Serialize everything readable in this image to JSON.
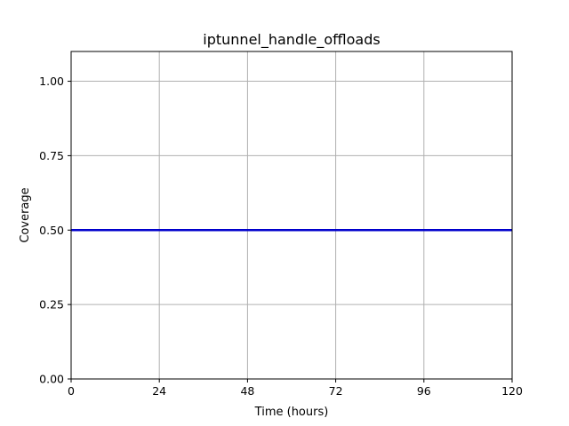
{
  "chart_data": {
    "type": "line",
    "title": "iptunnel_handle_offloads",
    "xlabel": "Time (hours)",
    "ylabel": "Coverage",
    "xlim": [
      0,
      120
    ],
    "ylim": [
      0,
      1.1
    ],
    "xticks": [
      0,
      24,
      48,
      72,
      96,
      120
    ],
    "xtick_labels": [
      "0",
      "24",
      "48",
      "72",
      "96",
      "120"
    ],
    "yticks": [
      0,
      0.25,
      0.5,
      0.75,
      1.0
    ],
    "ytick_labels": [
      "0.00",
      "0.25",
      "0.50",
      "0.75",
      "1.00"
    ],
    "grid": true,
    "legend": "none",
    "series": [
      {
        "x": [
          0,
          120
        ],
        "y": [
          0.5,
          0.5
        ],
        "color": "#0000cc"
      }
    ]
  }
}
